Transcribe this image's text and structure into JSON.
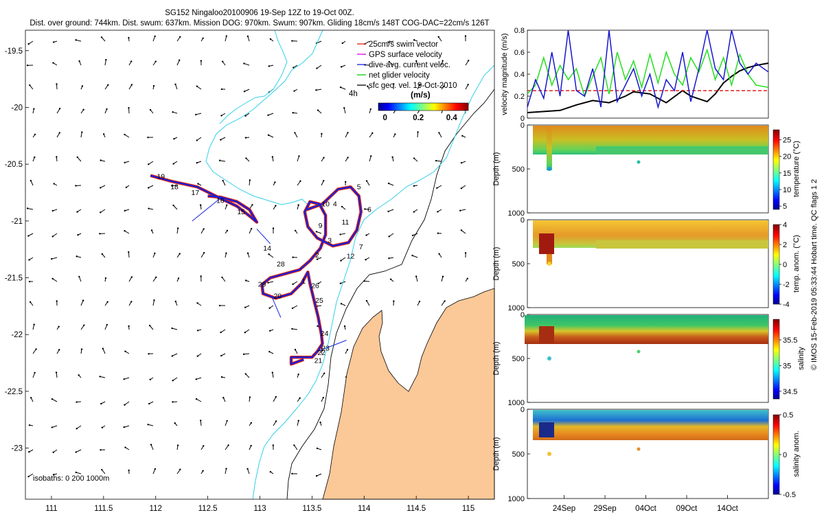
{
  "title": {
    "line1": "SG152 Ningaloo20100906 19-Sep 12Z to 19-Oct 00Z.",
    "line2": "Dist. over ground: 744km. Dist. swum: 637km. Mission DOG: 970km. Swum: 907km. Gliding 18cm/s 148T COG-DAC=22cm/s 126T"
  },
  "side_note": "© IMOS 15-Feb-2019 05:33:44 Hobart time. QC flags 1  2",
  "colors": {
    "land": "#fbc898",
    "coast_isobath": "#000000",
    "shelf_isobath": "#33d0e8",
    "track_swim": "#dd1f10",
    "track_dac": "#1020e0",
    "net_velocity": "#00cc00",
    "velocity_black": "#000000",
    "velocity_red_dashed": "#e11b1b",
    "velocity_blue": "#1515d0",
    "velocity_green": "#22e01e"
  },
  "chart_data": [
    {
      "id": "map",
      "type": "scatter",
      "xlabel": "",
      "ylabel": "",
      "xlim": [
        110.75,
        115.25
      ],
      "ylim": [
        -23.45,
        -19.32
      ],
      "xticks": [
        "111",
        "111.5",
        "112",
        "112.5",
        "113",
        "113.5",
        "114",
        "114.5",
        "115"
      ],
      "xtick_values": [
        111,
        111.5,
        112,
        112.5,
        113,
        113.5,
        114,
        114.5,
        115
      ],
      "yticks": [
        "-19.5",
        "-20",
        "-20.5",
        "-21",
        "-21.5",
        "-22",
        "-22.5",
        "-23"
      ],
      "ytick_values": [
        -19.5,
        -20,
        -20.5,
        -21,
        -21.5,
        -22,
        -22.5,
        -23
      ],
      "legend": {
        "position": "top-right",
        "items": [
          {
            "label": "25cm/s swim vector",
            "color": "#dd1f10"
          },
          {
            "label": "GPS surface velocity",
            "color": "#dd00dd"
          },
          {
            "label": "dive-avg. current veloc.",
            "color": "#1020e0"
          },
          {
            "label": "net glider velocity",
            "color": "#00cc00"
          },
          {
            "label": "sfc geo. vel. 19-Oct-2010",
            "color": "#000000"
          }
        ]
      },
      "scale_label": "4h",
      "colorbar": {
        "label": "(m/s)",
        "ticks": [
          "0",
          "0.2",
          "0.4"
        ],
        "tick_values": [
          0,
          0.2,
          0.4
        ],
        "range": [
          -0.04,
          0.5
        ]
      },
      "isobath_note": "isobaths: 0   200  1000m",
      "track": [
        {
          "lon": 111.95,
          "lat": -20.6
        },
        {
          "lon": 112.15,
          "lat": -20.65
        },
        {
          "lon": 112.4,
          "lat": -20.7
        },
        {
          "lon": 112.62,
          "lat": -20.8
        },
        {
          "lon": 112.78,
          "lat": -20.87
        },
        {
          "lon": 112.92,
          "lat": -20.97
        },
        {
          "lon": 112.97,
          "lat": -21.01
        },
        {
          "lon": 112.9,
          "lat": -20.9
        },
        {
          "lon": 112.78,
          "lat": -20.83
        },
        {
          "lon": 112.62,
          "lat": -20.79
        },
        {
          "lon": 112.5,
          "lat": -20.78
        },
        {
          "lon": 113.45,
          "lat": -20.9
        },
        {
          "lon": 113.6,
          "lat": -20.85
        },
        {
          "lon": 113.75,
          "lat": -20.72
        },
        {
          "lon": 113.87,
          "lat": -20.7
        },
        {
          "lon": 113.95,
          "lat": -20.78
        },
        {
          "lon": 113.97,
          "lat": -20.92
        },
        {
          "lon": 113.93,
          "lat": -21.08
        },
        {
          "lon": 113.85,
          "lat": -21.19
        },
        {
          "lon": 113.7,
          "lat": -21.22
        },
        {
          "lon": 113.55,
          "lat": -21.15
        },
        {
          "lon": 113.46,
          "lat": -21.05
        },
        {
          "lon": 113.43,
          "lat": -20.92
        },
        {
          "lon": 113.48,
          "lat": -20.83
        },
        {
          "lon": 113.57,
          "lat": -20.85
        },
        {
          "lon": 113.63,
          "lat": -20.95
        },
        {
          "lon": 113.63,
          "lat": -21.12
        },
        {
          "lon": 113.58,
          "lat": -21.24
        },
        {
          "lon": 113.48,
          "lat": -21.35
        },
        {
          "lon": 113.38,
          "lat": -21.43
        },
        {
          "lon": 113.22,
          "lat": -21.47
        },
        {
          "lon": 113.1,
          "lat": -21.5
        },
        {
          "lon": 113.02,
          "lat": -21.56
        },
        {
          "lon": 113.03,
          "lat": -21.64
        },
        {
          "lon": 113.15,
          "lat": -21.68
        },
        {
          "lon": 113.3,
          "lat": -21.64
        },
        {
          "lon": 113.4,
          "lat": -21.55
        },
        {
          "lon": 113.46,
          "lat": -21.45
        },
        {
          "lon": 113.48,
          "lat": -21.55
        },
        {
          "lon": 113.52,
          "lat": -21.7
        },
        {
          "lon": 113.56,
          "lat": -21.85
        },
        {
          "lon": 113.59,
          "lat": -22.0
        },
        {
          "lon": 113.6,
          "lat": -22.08
        },
        {
          "lon": 113.55,
          "lat": -22.15
        },
        {
          "lon": 113.5,
          "lat": -22.2
        },
        {
          "lon": 113.45,
          "lat": -22.2
        },
        {
          "lon": 113.3,
          "lat": -22.2
        },
        {
          "lon": 113.3,
          "lat": -22.26
        },
        {
          "lon": 113.42,
          "lat": -22.22
        }
      ],
      "day_labels": [
        {
          "text": "19",
          "lon": 112.05,
          "lat": -20.63
        },
        {
          "text": "18",
          "lon": 112.18,
          "lat": -20.72
        },
        {
          "text": "17",
          "lon": 112.38,
          "lat": -20.77
        },
        {
          "text": "16",
          "lon": 112.62,
          "lat": -20.84
        },
        {
          "text": "15",
          "lon": 112.82,
          "lat": -20.94
        },
        {
          "text": "14",
          "lon": 113.07,
          "lat": -21.26
        },
        {
          "text": "5",
          "lon": 113.95,
          "lat": -20.72
        },
        {
          "text": "6",
          "lon": 114.05,
          "lat": -20.92
        },
        {
          "text": "4",
          "lon": 113.72,
          "lat": -20.87
        },
        {
          "text": "10",
          "lon": 113.63,
          "lat": -20.87
        },
        {
          "text": "11",
          "lon": 113.82,
          "lat": -21.03
        },
        {
          "text": "9",
          "lon": 113.58,
          "lat": -21.06
        },
        {
          "text": "3",
          "lon": 113.67,
          "lat": -21.19
        },
        {
          "text": "7",
          "lon": 113.97,
          "lat": -21.25
        },
        {
          "text": "12",
          "lon": 113.87,
          "lat": -21.33
        },
        {
          "text": "2",
          "lon": 113.55,
          "lat": -21.32
        },
        {
          "text": "28",
          "lon": 113.2,
          "lat": -21.4
        },
        {
          "text": "29",
          "lon": 113.02,
          "lat": -21.58
        },
        {
          "text": "1",
          "lon": 113.42,
          "lat": -21.55
        },
        {
          "text": "26",
          "lon": 113.53,
          "lat": -21.59
        },
        {
          "text": "20",
          "lon": 113.17,
          "lat": -21.68
        },
        {
          "text": "25",
          "lon": 113.57,
          "lat": -21.72
        },
        {
          "text": "24",
          "lon": 113.62,
          "lat": -22.01
        },
        {
          "text": "23",
          "lon": 113.63,
          "lat": -22.14
        },
        {
          "text": "22",
          "lon": 113.59,
          "lat": -22.18
        },
        {
          "text": "21",
          "lon": 113.56,
          "lat": -22.25
        }
      ]
    },
    {
      "id": "velocity",
      "type": "line",
      "ylabel": "velocity magnitude (m/s)",
      "xlabel": "",
      "ylim": [
        0,
        0.8
      ],
      "yticks": [
        "0",
        "0.2",
        "0.4",
        "0.6",
        "0.8"
      ],
      "ytick_values": [
        0,
        0.2,
        0.4,
        0.6,
        0.8
      ],
      "xlim_days": [
        0,
        29.5
      ],
      "series": [
        {
          "color": "#000000",
          "x": [
            0,
            2,
            4,
            6,
            8,
            10,
            12,
            13,
            15,
            17,
            19,
            20,
            22,
            23,
            24,
            25,
            26,
            27,
            28,
            29.5
          ],
          "y": [
            0.05,
            0.06,
            0.07,
            0.12,
            0.16,
            0.14,
            0.2,
            0.24,
            0.22,
            0.14,
            0.25,
            0.2,
            0.15,
            0.22,
            0.32,
            0.38,
            0.43,
            0.46,
            0.48,
            0.5
          ]
        },
        {
          "color": "#e11b1b",
          "dashed": true,
          "x": [
            0,
            29.5
          ],
          "y": [
            0.25,
            0.25
          ]
        },
        {
          "color": "#22e01e",
          "x": [
            0,
            1,
            2,
            3,
            4,
            5,
            6,
            7,
            8,
            9,
            10,
            11,
            12,
            13,
            14,
            15,
            16,
            17,
            18,
            19,
            20,
            21,
            22,
            23,
            24,
            25,
            26,
            27,
            28,
            29.5
          ],
          "y": [
            0.22,
            0.3,
            0.55,
            0.3,
            0.48,
            0.35,
            0.45,
            0.2,
            0.38,
            0.55,
            0.22,
            0.6,
            0.35,
            0.52,
            0.28,
            0.58,
            0.32,
            0.6,
            0.4,
            0.3,
            0.55,
            0.42,
            0.62,
            0.35,
            0.55,
            0.3,
            0.58,
            0.4,
            0.3,
            0.28
          ]
        },
        {
          "color": "#1515d0",
          "x": [
            0,
            1,
            2,
            3,
            4,
            5,
            6,
            7,
            8,
            9,
            10,
            11,
            12,
            13,
            14,
            15,
            16,
            17,
            18,
            19,
            20,
            21,
            22,
            23,
            24,
            25,
            26,
            27,
            28,
            29.5
          ],
          "y": [
            0.1,
            0.35,
            0.18,
            0.6,
            0.2,
            0.8,
            0.25,
            0.2,
            0.45,
            0.1,
            0.8,
            0.15,
            0.3,
            0.45,
            0.2,
            0.4,
            0.1,
            0.35,
            0.25,
            0.6,
            0.15,
            0.45,
            0.8,
            0.45,
            0.35,
            0.8,
            0.5,
            0.4,
            0.5,
            0.42
          ]
        }
      ]
    },
    {
      "id": "temperature",
      "type": "heatmap",
      "ylabel": "Depth (m)",
      "ylim": [
        1000,
        0
      ],
      "yticks": [
        "0",
        "500",
        "1000"
      ],
      "ytick_values": [
        0,
        500,
        1000
      ],
      "colorbar": {
        "label": "temperature (°C)",
        "ticks": [
          "5",
          "10",
          "15",
          "20",
          "25"
        ],
        "tick_values": [
          5,
          10,
          15,
          20,
          25
        ],
        "range": [
          4,
          28
        ]
      }
    },
    {
      "id": "temp_anom",
      "type": "heatmap",
      "ylabel": "Depth (m)",
      "ylim": [
        1000,
        0
      ],
      "yticks": [
        "0",
        "500",
        "1000"
      ],
      "ytick_values": [
        0,
        500,
        1000
      ],
      "colorbar": {
        "label": "temp. anom. (°C)",
        "ticks": [
          "-4",
          "-2",
          "0",
          "2",
          "4"
        ],
        "tick_values": [
          -4,
          -2,
          0,
          2,
          4
        ],
        "range": [
          -4,
          4
        ]
      }
    },
    {
      "id": "salinity",
      "type": "heatmap",
      "ylabel": "Depth (m)",
      "ylim": [
        1000,
        0
      ],
      "yticks": [
        "0",
        "500",
        "1000"
      ],
      "ytick_values": [
        0,
        500,
        1000
      ],
      "colorbar": {
        "label": "salinity",
        "ticks": [
          "34.5",
          "35",
          "35.5"
        ],
        "tick_values": [
          34.5,
          35,
          35.5
        ],
        "range": [
          34.35,
          35.9
        ]
      }
    },
    {
      "id": "sal_anom",
      "type": "heatmap",
      "ylabel": "Depth (m)",
      "ylim": [
        1000,
        0
      ],
      "yticks": [
        "0",
        "500",
        "1000"
      ],
      "ytick_values": [
        0,
        500,
        1000
      ],
      "xticks": [
        "24Sep",
        "29Sep",
        "04Oct",
        "09Oct",
        "14Oct"
      ],
      "xtick_days": [
        4.5,
        9.5,
        14.5,
        19.5,
        24.5
      ],
      "colorbar": {
        "label": "salinity  anom.",
        "ticks": [
          "-0.5",
          "0",
          "0.5"
        ],
        "tick_values": [
          -0.5,
          0,
          0.5
        ],
        "range": [
          -0.5,
          0.5
        ]
      }
    }
  ]
}
